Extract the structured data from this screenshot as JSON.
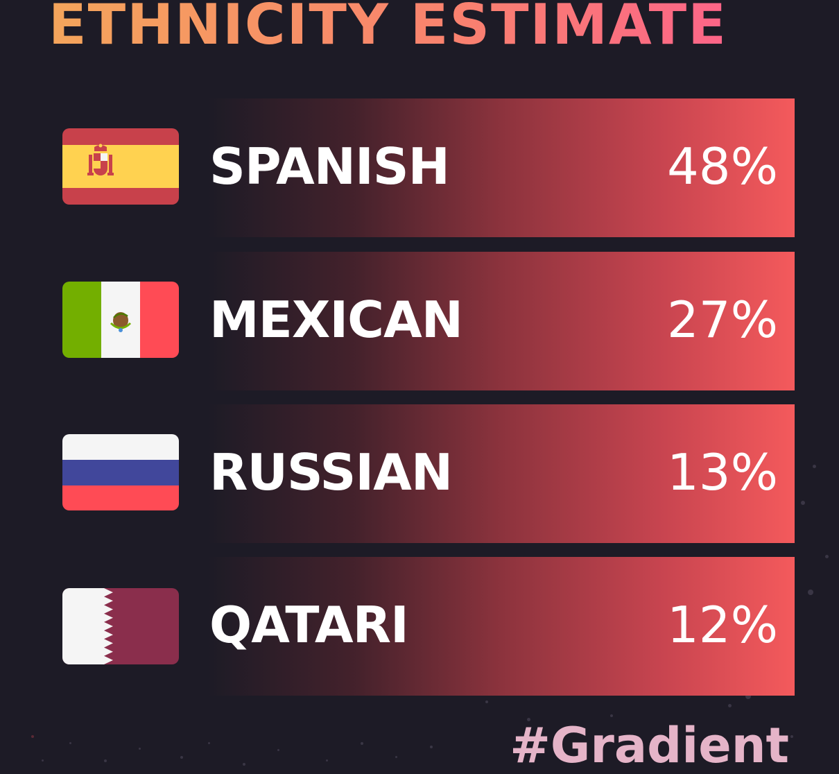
{
  "header": {
    "title": "ETHNICITY ESTIMATE"
  },
  "rows": [
    {
      "label": "SPANISH",
      "percent": "48%",
      "flag": "spain-flag"
    },
    {
      "label": "MEXICAN",
      "percent": "27%",
      "flag": "mexico-flag"
    },
    {
      "label": "RUSSIAN",
      "percent": "13%",
      "flag": "russia-flag"
    },
    {
      "label": "QATARI",
      "percent": "12%",
      "flag": "qatar-flag"
    }
  ],
  "footer": {
    "hashtag": "#Gradient"
  },
  "colors": {
    "background": "#1d1b26",
    "bar_end": "#f45a5c",
    "title_start": "#f4a55b",
    "title_end": "#fd5d8f",
    "hashtag": "#e5b4c8"
  }
}
